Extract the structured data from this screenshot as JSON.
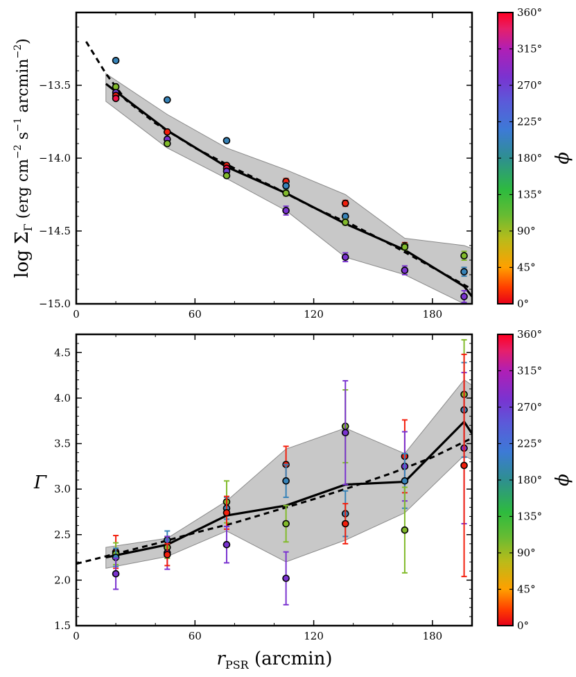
{
  "figure": {
    "xlabel": "r_PSR (arcmin)",
    "xlabel_main": "r",
    "xlabel_sub": "PSR",
    "xlabel_unit": " (arcmin)"
  },
  "chart_data": [
    {
      "type": "scatter",
      "name": "surface-brightness",
      "ylabel": "log Σ_Γ (erg cm^-2 s^-1 arcmin^-2)",
      "ylabel_text": {
        "pre": "log Σ",
        "sub": "Γ",
        "unit1": " (erg cm",
        "e1": "−2",
        "unit2": " s",
        "e2": "−1",
        "unit3": " arcmin",
        "e3": "−2",
        "close": ")"
      },
      "xlim": [
        0,
        200
      ],
      "ylim": [
        -15.0,
        -13.0
      ],
      "xticks": [
        0,
        60,
        120,
        180
      ],
      "xtick_labels": [
        "0",
        "60",
        "120",
        "180"
      ],
      "yticks": [
        -15.0,
        -14.5,
        -14.0,
        -13.5
      ],
      "ytick_labels": [
        "−15.0",
        "−14.5",
        "−14.0",
        "−13.5"
      ],
      "points": [
        {
          "x": 20,
          "y": -13.33,
          "phi": 200,
          "err": 0.01
        },
        {
          "x": 20,
          "y": -13.51,
          "phi": 100,
          "err": 0.01
        },
        {
          "x": 20,
          "y": -13.55,
          "phi": 270,
          "err": 0.01
        },
        {
          "x": 20,
          "y": -13.57,
          "phi": 10,
          "err": 0.01
        },
        {
          "x": 20,
          "y": -13.59,
          "phi": 350,
          "err": 0.01
        },
        {
          "x": 46,
          "y": -13.6,
          "phi": 200,
          "err": 0.01
        },
        {
          "x": 46,
          "y": -13.82,
          "phi": 10,
          "err": 0.01
        },
        {
          "x": 46,
          "y": -13.87,
          "phi": 280,
          "err": 0.01
        },
        {
          "x": 46,
          "y": -13.9,
          "phi": 100,
          "err": 0.01
        },
        {
          "x": 76,
          "y": -13.88,
          "phi": 200,
          "err": 0.01
        },
        {
          "x": 76,
          "y": -14.05,
          "phi": 10,
          "err": 0.01
        },
        {
          "x": 76,
          "y": -14.07,
          "phi": 350,
          "err": 0.01
        },
        {
          "x": 76,
          "y": -14.09,
          "phi": 270,
          "err": 0.01
        },
        {
          "x": 76,
          "y": -14.12,
          "phi": 100,
          "err": 0.01
        },
        {
          "x": 106,
          "y": -14.16,
          "phi": 10,
          "err": 0.02
        },
        {
          "x": 106,
          "y": -14.19,
          "phi": 200,
          "err": 0.02
        },
        {
          "x": 106,
          "y": -14.24,
          "phi": 100,
          "err": 0.02
        },
        {
          "x": 106,
          "y": -14.36,
          "phi": 280,
          "err": 0.03
        },
        {
          "x": 136,
          "y": -14.31,
          "phi": 10,
          "err": 0.02
        },
        {
          "x": 136,
          "y": -14.4,
          "phi": 200,
          "err": 0.02
        },
        {
          "x": 136,
          "y": -14.44,
          "phi": 100,
          "err": 0.02
        },
        {
          "x": 136,
          "y": -14.68,
          "phi": 280,
          "err": 0.03
        },
        {
          "x": 166,
          "y": -14.6,
          "phi": 10,
          "err": 0.02
        },
        {
          "x": 166,
          "y": -14.61,
          "phi": 100,
          "err": 0.02
        },
        {
          "x": 166,
          "y": -14.77,
          "phi": 280,
          "err": 0.03
        },
        {
          "x": 196,
          "y": -14.67,
          "phi": 100,
          "err": 0.03
        },
        {
          "x": 196,
          "y": -14.78,
          "phi": 200,
          "err": 0.03
        },
        {
          "x": 196,
          "y": -14.95,
          "phi": 280,
          "err": 0.04
        }
      ],
      "band_upper": {
        "x": [
          15,
          46,
          76,
          106,
          136,
          166,
          196,
          200
        ],
        "y": [
          -13.42,
          -13.7,
          -13.93,
          -14.08,
          -14.25,
          -14.55,
          -14.6,
          -14.62
        ]
      },
      "band_lower": {
        "x": [
          15,
          46,
          76,
          106,
          136,
          166,
          196,
          200
        ],
        "y": [
          -13.61,
          -13.93,
          -14.14,
          -14.36,
          -14.68,
          -14.8,
          -15.0,
          -15.05
        ]
      },
      "mean_line": {
        "x": [
          15,
          46,
          76,
          106,
          136,
          166,
          196,
          200
        ],
        "y": [
          -13.49,
          -13.81,
          -14.06,
          -14.24,
          -14.45,
          -14.63,
          -14.88,
          -14.95
        ]
      },
      "fit_line": {
        "x": [
          5,
          15,
          25,
          40,
          60,
          80,
          100,
          120,
          140,
          160,
          180,
          200
        ],
        "y": [
          -13.2,
          -13.42,
          -13.6,
          -13.76,
          -13.93,
          -14.07,
          -14.2,
          -14.34,
          -14.46,
          -14.6,
          -14.75,
          -14.9
        ]
      }
    },
    {
      "type": "scatter",
      "name": "photon-index",
      "ylabel": "Γ",
      "xlim": [
        0,
        200
      ],
      "ylim": [
        1.5,
        4.7
      ],
      "xticks": [
        0,
        60,
        120,
        180
      ],
      "xtick_labels": [
        "0",
        "60",
        "120",
        "180"
      ],
      "yticks": [
        1.5,
        2.0,
        2.5,
        3.0,
        3.5,
        4.0,
        4.5
      ],
      "ytick_labels": [
        "1.5",
        "2.0",
        "2.5",
        "3.0",
        "3.5",
        "4.0",
        "4.5"
      ],
      "points": [
        {
          "x": 20,
          "y": 2.31,
          "phi": 10,
          "err": 0.18
        },
        {
          "x": 20,
          "y": 2.29,
          "phi": 100,
          "err": 0.12
        },
        {
          "x": 20,
          "y": 2.25,
          "phi": 200,
          "err": 0.1
        },
        {
          "x": 20,
          "y": 2.07,
          "phi": 280,
          "err": 0.17
        },
        {
          "x": 46,
          "y": 2.44,
          "phi": 200,
          "err": 0.1
        },
        {
          "x": 46,
          "y": 2.36,
          "phi": 100,
          "err": 0.12
        },
        {
          "x": 46,
          "y": 2.3,
          "phi": 280,
          "err": 0.18
        },
        {
          "x": 46,
          "y": 2.28,
          "phi": 10,
          "err": 0.12
        },
        {
          "x": 76,
          "y": 2.86,
          "phi": 100,
          "err": 0.23
        },
        {
          "x": 76,
          "y": 2.79,
          "phi": 200,
          "err": 0.12
        },
        {
          "x": 76,
          "y": 2.74,
          "phi": 10,
          "err": 0.18
        },
        {
          "x": 76,
          "y": 2.39,
          "phi": 280,
          "err": 0.2
        },
        {
          "x": 106,
          "y": 3.27,
          "phi": 10,
          "err": 0.2
        },
        {
          "x": 106,
          "y": 3.09,
          "phi": 200,
          "err": 0.18
        },
        {
          "x": 106,
          "y": 2.62,
          "phi": 100,
          "err": 0.2
        },
        {
          "x": 106,
          "y": 2.02,
          "phi": 280,
          "err": 0.29
        },
        {
          "x": 136,
          "y": 3.69,
          "phi": 100,
          "err": 0.4
        },
        {
          "x": 136,
          "y": 3.62,
          "phi": 280,
          "err": 0.57
        },
        {
          "x": 136,
          "y": 2.73,
          "phi": 200,
          "err": 0.25
        },
        {
          "x": 136,
          "y": 2.62,
          "phi": 10,
          "err": 0.22
        },
        {
          "x": 166,
          "y": 3.36,
          "phi": 10,
          "err": 0.4
        },
        {
          "x": 166,
          "y": 3.25,
          "phi": 280,
          "err": 0.38
        },
        {
          "x": 166,
          "y": 3.09,
          "phi": 200,
          "err": 0.3
        },
        {
          "x": 166,
          "y": 2.55,
          "phi": 100,
          "err": 0.47
        },
        {
          "x": 196,
          "y": 4.04,
          "phi": 100,
          "err": 0.6
        },
        {
          "x": 196,
          "y": 3.87,
          "phi": 200,
          "err": 0.52
        },
        {
          "x": 196,
          "y": 3.45,
          "phi": 280,
          "err": 0.83
        },
        {
          "x": 196,
          "y": 3.26,
          "phi": 10,
          "err": 1.22
        }
      ],
      "band_upper": {
        "x": [
          15,
          46,
          76,
          106,
          136,
          166,
          196,
          200
        ],
        "y": [
          2.36,
          2.46,
          2.87,
          3.44,
          3.67,
          3.39,
          4.2,
          4.14
        ]
      },
      "band_lower": {
        "x": [
          15,
          46,
          76,
          106,
          136,
          166,
          196,
          200
        ],
        "y": [
          2.13,
          2.26,
          2.54,
          2.2,
          2.44,
          2.74,
          3.37,
          3.32
        ]
      },
      "mean_line": {
        "x": [
          15,
          46,
          76,
          106,
          136,
          166,
          196,
          200
        ],
        "y": [
          2.25,
          2.39,
          2.71,
          2.82,
          3.05,
          3.08,
          3.74,
          3.61
        ]
      },
      "fit_line": {
        "x": [
          0,
          20,
          40,
          60,
          80,
          100,
          120,
          140,
          160,
          180,
          200
        ],
        "y": [
          2.18,
          2.29,
          2.4,
          2.52,
          2.63,
          2.76,
          2.89,
          3.03,
          3.18,
          3.35,
          3.56
        ]
      }
    }
  ],
  "colorbar": {
    "label": "ϕ",
    "range": [
      0,
      360
    ],
    "ticks": [
      0,
      45,
      90,
      135,
      180,
      225,
      270,
      315,
      360
    ],
    "tick_labels": [
      "0°",
      "45°",
      "90°",
      "135°",
      "180°",
      "225°",
      "270°",
      "315°",
      "360°"
    ],
    "stops": [
      {
        "v": 0,
        "color": "#e6001a"
      },
      {
        "v": 20,
        "color": "#ff3d00"
      },
      {
        "v": 45,
        "color": "#ffa000"
      },
      {
        "v": 80,
        "color": "#b9bb1a"
      },
      {
        "v": 110,
        "color": "#66bb33"
      },
      {
        "v": 140,
        "color": "#2ebb3e"
      },
      {
        "v": 180,
        "color": "#2e8f8f"
      },
      {
        "v": 215,
        "color": "#3d7ad6"
      },
      {
        "v": 250,
        "color": "#5b5ad9"
      },
      {
        "v": 280,
        "color": "#7a33d0"
      },
      {
        "v": 315,
        "color": "#b01fb5"
      },
      {
        "v": 340,
        "color": "#e61f6a"
      },
      {
        "v": 360,
        "color": "#ff0022"
      }
    ]
  },
  "colors": {
    "band": "#b0b0b0",
    "band_edge": "#8a8a8a",
    "lines": "#000000"
  }
}
